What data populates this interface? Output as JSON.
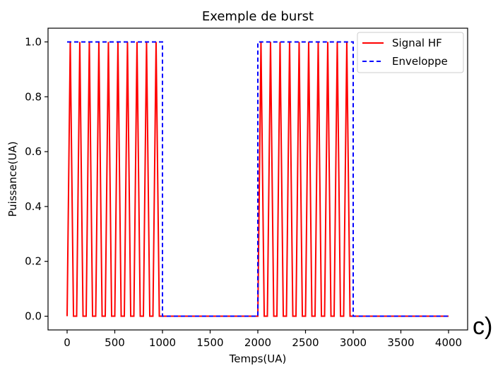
{
  "panel_label": "c)",
  "colors": {
    "signal": "#ff0000",
    "envelope": "#0000ff",
    "axes": "#000000",
    "background": "#ffffff"
  },
  "chart_data": {
    "type": "line",
    "title": "Exemple de burst",
    "xlabel": "Temps(UA)",
    "ylabel": "Puissance(UA)",
    "xlim": [
      -200,
      4200
    ],
    "ylim": [
      -0.05,
      1.05
    ],
    "xticks": [
      0,
      500,
      1000,
      1500,
      2000,
      2500,
      3000,
      3500,
      4000
    ],
    "xtick_labels": [
      "0",
      "500",
      "1000",
      "1500",
      "2000",
      "2500",
      "3000",
      "3500",
      "4000"
    ],
    "yticks": [
      0.0,
      0.2,
      0.4,
      0.6,
      0.8,
      1.0
    ],
    "ytick_labels": [
      "0.0",
      "0.2",
      "0.4",
      "0.6",
      "0.8",
      "1.0"
    ],
    "grid": false,
    "legend_position": "upper right",
    "series": [
      {
        "name": "Signal HF",
        "style": "solid",
        "color": "#ff0000",
        "x": [
          0,
          33,
          67,
          100,
          133,
          167,
          200,
          233,
          267,
          300,
          333,
          367,
          400,
          433,
          467,
          500,
          533,
          567,
          600,
          633,
          667,
          700,
          733,
          767,
          800,
          833,
          867,
          900,
          933,
          967,
          1000,
          1000,
          2000,
          2000,
          2033,
          2067,
          2100,
          2133,
          2167,
          2200,
          2233,
          2267,
          2300,
          2333,
          2367,
          2400,
          2433,
          2467,
          2500,
          2533,
          2567,
          2600,
          2633,
          2667,
          2700,
          2733,
          2767,
          2800,
          2833,
          2867,
          2900,
          2933,
          2967,
          3000,
          3000,
          4000
        ],
        "y": [
          0,
          1,
          0,
          0,
          1,
          0,
          0,
          1,
          0,
          0,
          1,
          0,
          0,
          1,
          0,
          0,
          1,
          0,
          0,
          1,
          0,
          0,
          1,
          0,
          0,
          1,
          0,
          0,
          1,
          0,
          0,
          0,
          0,
          0,
          1,
          0,
          0,
          1,
          0,
          0,
          1,
          0,
          0,
          1,
          0,
          0,
          1,
          0,
          0,
          1,
          0,
          0,
          1,
          0,
          0,
          1,
          0,
          0,
          1,
          0,
          0,
          1,
          0,
          0,
          0,
          0
        ]
      },
      {
        "name": "Enveloppe",
        "style": "dashed",
        "color": "#0000ff",
        "x": [
          0,
          1000,
          1000,
          2000,
          2000,
          3000,
          3000,
          4000
        ],
        "y": [
          1,
          1,
          0,
          0,
          1,
          1,
          0,
          0
        ]
      }
    ]
  }
}
